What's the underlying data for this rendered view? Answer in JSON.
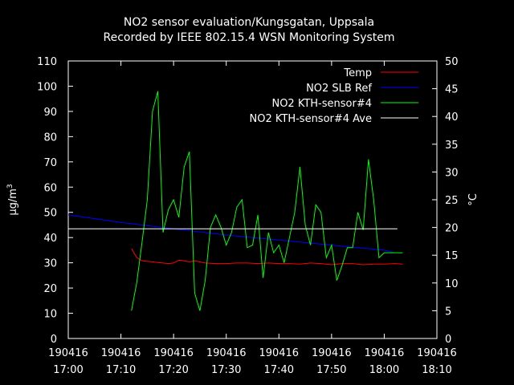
{
  "chart_data": {
    "type": "line",
    "title": "NO2 sensor evaluation/Kungsgatan, Uppsala",
    "subtitle": "Recorded by IEEE 802.15.4 WSN Monitoring System",
    "ylabel_left": "µg/m",
    "ylabel_left_sup": "3",
    "ylabel_right": "°C",
    "xlim_minutes": [
      0,
      70
    ],
    "ylim_left": [
      0,
      110
    ],
    "ylim_right": [
      0,
      50
    ],
    "x_ticks": [
      {
        "date": "190416",
        "time": "17:00"
      },
      {
        "date": "190416",
        "time": "17:10"
      },
      {
        "date": "190416",
        "time": "17:20"
      },
      {
        "date": "190416",
        "time": "17:30"
      },
      {
        "date": "190416",
        "time": "17:40"
      },
      {
        "date": "190416",
        "time": "17:50"
      },
      {
        "date": "190416",
        "time": "18:00"
      },
      {
        "date": "190416",
        "time": "18:10"
      }
    ],
    "y_left_ticks": [
      "0",
      "10",
      "20",
      "30",
      "40",
      "50",
      "60",
      "70",
      "80",
      "90",
      "100",
      "110"
    ],
    "y_right_ticks": [
      "0",
      "5",
      "10",
      "15",
      "20",
      "25",
      "30",
      "35",
      "40",
      "45",
      "50"
    ],
    "legend_position": "top-right",
    "series": [
      {
        "name": "Temp",
        "color": "#ff0000",
        "axis": "right",
        "x": [
          12,
          13,
          14,
          15,
          16,
          17,
          18,
          19,
          20,
          21,
          22,
          23,
          24,
          25,
          26,
          28,
          30,
          32,
          34,
          36,
          38,
          40,
          42,
          44,
          46,
          48,
          50,
          52,
          54,
          56,
          58,
          60,
          62,
          63.5
        ],
        "y": [
          16.2,
          14.6,
          14.0,
          13.9,
          13.8,
          13.7,
          13.6,
          13.5,
          13.6,
          14.1,
          14.0,
          13.8,
          14.0,
          13.8,
          13.6,
          13.5,
          13.5,
          13.6,
          13.6,
          13.5,
          13.6,
          13.5,
          13.5,
          13.4,
          13.6,
          13.5,
          13.3,
          13.5,
          13.5,
          13.3,
          13.4,
          13.4,
          13.5,
          13.4
        ]
      },
      {
        "name": "NO2 SLB Ref",
        "color": "#0000ff",
        "axis": "left",
        "x": [
          0,
          10,
          20,
          30,
          40,
          50,
          60,
          62
        ],
        "y": [
          49,
          46,
          43.5,
          41,
          39,
          37,
          35,
          34
        ]
      },
      {
        "name": "NO2 KTH-sensor#4",
        "color": "#00ff00",
        "axis": "left",
        "x": [
          12,
          13,
          14,
          15,
          16,
          17,
          18,
          19,
          20,
          21,
          22,
          23,
          24,
          25,
          26,
          27,
          28,
          29,
          30,
          31,
          32,
          33,
          34,
          35,
          36,
          37,
          38,
          39,
          40,
          41,
          42,
          43,
          44,
          45,
          46,
          47,
          48,
          49,
          50,
          51,
          52,
          53,
          54,
          55,
          56,
          57,
          58,
          59,
          60,
          61,
          62,
          63,
          63.5
        ],
        "y": [
          11,
          22,
          38,
          55,
          90,
          98,
          42,
          51,
          55,
          48,
          68,
          74,
          18,
          11,
          23,
          44,
          49,
          44,
          37,
          42,
          52,
          55,
          36,
          37,
          49,
          24,
          42,
          34,
          37,
          30,
          40,
          50,
          68,
          45,
          37,
          53,
          50,
          32,
          37,
          23,
          29,
          36,
          36,
          50,
          43,
          71,
          55,
          32,
          34,
          34,
          34,
          34,
          34
        ]
      },
      {
        "name": "NO2 KTH-sensor#4 Ave",
        "color": "#ffffff",
        "axis": "left",
        "x": [
          0,
          62.5
        ],
        "y": [
          43.5,
          43.5
        ]
      }
    ]
  }
}
